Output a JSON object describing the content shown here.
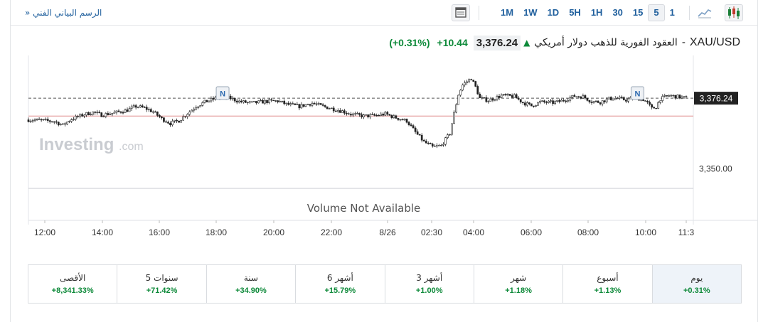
{
  "toolbar": {
    "back_label": "الرسم البياني الفني",
    "back_arrow": "»",
    "timeframes": [
      "1M",
      "1W",
      "1D",
      "5H",
      "1H",
      "30",
      "15",
      "5",
      "1"
    ],
    "active_timeframe": "5",
    "icons": [
      "layout-icon",
      "area-chart-icon",
      "candlestick-icon"
    ]
  },
  "header": {
    "symbol": "XAU/USD",
    "separator": "-",
    "name": "العقود الفورية للذهب دولار أمريكي",
    "price": "3,376.24",
    "change": "+10.44",
    "change_pct": "(+0.31%)",
    "direction": "up"
  },
  "chart_data": {
    "type": "candlestick",
    "watermark": "Investing",
    "watermark_suffix": ".com",
    "volume_text": "Volume Not Available",
    "x_ticks": [
      "12:00",
      "14:00",
      "16:00",
      "18:00",
      "20:00",
      "22:00",
      "8/26",
      "02:30",
      "04:00",
      "06:00",
      "08:00",
      "10:00",
      "11:3"
    ],
    "y_ticks": [
      3350.0
    ],
    "y_tick_labels": [
      "3,350.00"
    ],
    "ylim": [
      3343,
      3390
    ],
    "last_price": 3376.24,
    "last_price_label": "3,376.24",
    "reference_line": 3369.6,
    "news_markers": [
      "N",
      "N"
    ],
    "close_path": [
      [
        0,
        3368.2
      ],
      [
        6,
        3368.0
      ],
      [
        12,
        3367.6
      ],
      [
        16,
        3366.2
      ],
      [
        20,
        3368.5
      ],
      [
        26,
        3370.2
      ],
      [
        30,
        3371.0
      ],
      [
        34,
        3370.0
      ],
      [
        40,
        3370.8
      ],
      [
        46,
        3371.8
      ],
      [
        50,
        3373.2
      ],
      [
        54,
        3372.6
      ],
      [
        58,
        3371.2
      ],
      [
        62,
        3368.6
      ],
      [
        66,
        3366.9
      ],
      [
        70,
        3367.9
      ],
      [
        74,
        3370.6
      ],
      [
        78,
        3373.2
      ],
      [
        82,
        3374.8
      ],
      [
        86,
        3375.9
      ],
      [
        90,
        3376.8
      ],
      [
        94,
        3376.2
      ],
      [
        98,
        3375.0
      ],
      [
        104,
        3374.4
      ],
      [
        110,
        3375.0
      ],
      [
        116,
        3375.2
      ],
      [
        120,
        3374.0
      ],
      [
        126,
        3373.2
      ],
      [
        132,
        3374.4
      ],
      [
        136,
        3373.4
      ],
      [
        140,
        3372.6
      ],
      [
        146,
        3371.4
      ],
      [
        150,
        3370.3
      ],
      [
        156,
        3369.6
      ],
      [
        162,
        3369.8
      ],
      [
        166,
        3370.4
      ],
      [
        170,
        3369.2
      ],
      [
        176,
        3367.8
      ],
      [
        180,
        3363.6
      ],
      [
        184,
        3360.0
      ],
      [
        188,
        3358.1
      ],
      [
        192,
        3358.6
      ],
      [
        196,
        3363.2
      ],
      [
        198,
        3370.6
      ],
      [
        200,
        3377.6
      ],
      [
        202,
        3381.2
      ],
      [
        206,
        3383.6
      ],
      [
        208,
        3380.4
      ],
      [
        210,
        3376.2
      ],
      [
        214,
        3375.4
      ],
      [
        220,
        3377.2
      ],
      [
        226,
        3376.9
      ],
      [
        230,
        3374.6
      ],
      [
        234,
        3373.4
      ],
      [
        238,
        3374.8
      ],
      [
        244,
        3374.6
      ],
      [
        248,
        3375.2
      ],
      [
        254,
        3377.0
      ],
      [
        258,
        3376.8
      ],
      [
        262,
        3375.0
      ],
      [
        266,
        3374.8
      ],
      [
        270,
        3376.0
      ],
      [
        274,
        3376.2
      ],
      [
        278,
        3375.6
      ],
      [
        282,
        3376.4
      ],
      [
        286,
        3375.8
      ],
      [
        288,
        3374.4
      ],
      [
        290,
        3372.4
      ],
      [
        292,
        3373.0
      ],
      [
        294,
        3376.0
      ],
      [
        298,
        3377.2
      ],
      [
        302,
        3376.8
      ],
      [
        306,
        3376.24
      ]
    ]
  },
  "performance": [
    {
      "label": "يوم",
      "value": "+0.31%",
      "active": true
    },
    {
      "label": "أسبوع",
      "value": "+1.13%",
      "active": false
    },
    {
      "label": "شهر",
      "value": "+1.18%",
      "active": false
    },
    {
      "label": "3 أشهر",
      "value": "+1.00%",
      "active": false
    },
    {
      "label": "6 أشهر",
      "value": "+15.79%",
      "active": false
    },
    {
      "label": "سنة",
      "value": "+34.90%",
      "active": false
    },
    {
      "label": "5 سنوات",
      "value": "+71.42%",
      "active": false
    },
    {
      "label": "الأقصى",
      "value": "+8,341.33%",
      "active": false
    }
  ],
  "colors": {
    "accent": "#1f5f9d",
    "up": "#0e8a3a",
    "candle_up": "#ffffff",
    "candle_down": "#222222",
    "reference": "#e08b8b",
    "price_tag": "#222222"
  }
}
